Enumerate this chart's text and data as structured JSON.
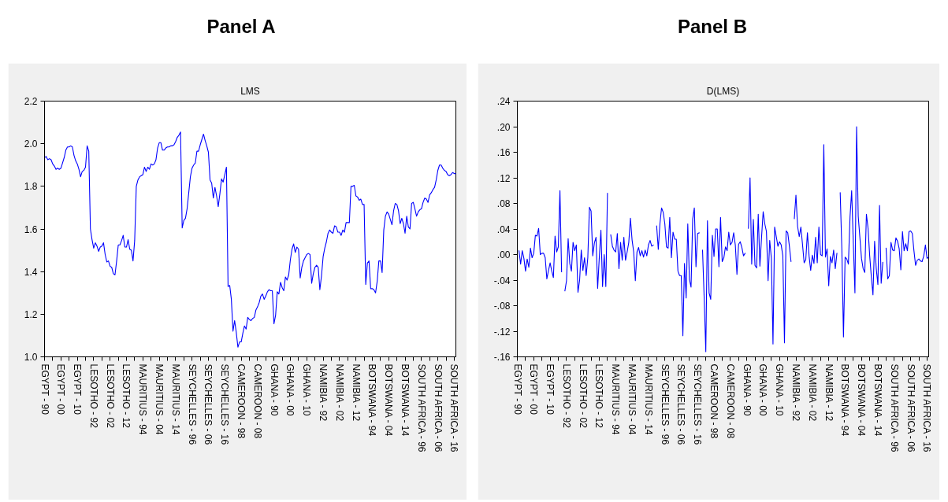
{
  "chart_data": [
    {
      "type": "line",
      "title": "Panel A",
      "subtitle": "LMS",
      "categories": [
        "EGYPT - 90",
        null,
        null,
        null,
        null,
        null,
        null,
        null,
        null,
        null,
        "EGYPT - 00",
        null,
        null,
        null,
        null,
        null,
        null,
        null,
        null,
        null,
        "EGYPT - 10",
        null,
        null,
        null,
        null,
        null,
        null,
        null,
        null,
        null,
        "LESOTHO - 92",
        null,
        null,
        null,
        null,
        null,
        null,
        null,
        null,
        null,
        "LESOTHO - 02",
        null,
        null,
        null,
        null,
        null,
        null,
        null,
        null,
        null,
        "LESOTHO - 12",
        null,
        null,
        null,
        null,
        null,
        null,
        null,
        null,
        null,
        "MAURITIUS - 94",
        null,
        null,
        null,
        null,
        null,
        null,
        null,
        null,
        null,
        "MAURITIUS - 04",
        null,
        null,
        null,
        null,
        null,
        null,
        null,
        null,
        null,
        "MAURITIUS - 14",
        null,
        null,
        null,
        null,
        null,
        null,
        null,
        null,
        null,
        "SEYCHELLES - 96",
        null,
        null,
        null,
        null,
        null,
        null,
        null,
        null,
        null,
        "SEYCHELLES - 06",
        null,
        null,
        null,
        null,
        null,
        null,
        null,
        null,
        null,
        "SEYCHELLES - 16",
        null,
        null,
        null,
        null,
        null,
        null,
        null,
        null,
        null,
        "CAMEROON - 98",
        null,
        null,
        null,
        null,
        null,
        null,
        null,
        null,
        null,
        "CAMEROON - 08",
        null,
        null,
        null,
        null,
        null,
        null,
        null,
        null,
        null,
        "GHANA - 90",
        null,
        null,
        null,
        null,
        null,
        null,
        null,
        null,
        null,
        "GHANA - 00",
        null,
        null,
        null,
        null,
        null,
        null,
        null,
        null,
        null,
        "GHANA - 10",
        null,
        null,
        null,
        null,
        null,
        null,
        null,
        null,
        null,
        "NAMIBIA - 92",
        null,
        null,
        null,
        null,
        null,
        null,
        null,
        null,
        null,
        "NAMIBIA - 02",
        null,
        null,
        null,
        null,
        null,
        null,
        null,
        null,
        null,
        "NAMIBIA - 12",
        null,
        null,
        null,
        null,
        null,
        null,
        null,
        null,
        null,
        "BOTSWANA - 94",
        null,
        null,
        null,
        null,
        null,
        null,
        null,
        null,
        null,
        "BOTSWANA - 04",
        null,
        null,
        null,
        null,
        null,
        null,
        null,
        null,
        null,
        "BOTSWANA - 14",
        null,
        null,
        null,
        null,
        null,
        null,
        null,
        null,
        null,
        "SOUTH AFRICA - 96",
        null,
        null,
        null,
        null,
        null,
        null,
        null,
        null,
        null,
        "SOUTH AFRICA - 06",
        null,
        null,
        null,
        null,
        null,
        null,
        null,
        null,
        null,
        "SOUTH AFRICA - 16",
        null
      ],
      "series": [
        {
          "color": "#0000ff",
          "values": [
            1.935,
            1.94,
            1.925,
            1.93,
            1.925,
            1.905,
            1.895,
            1.88,
            1.885,
            1.88,
            1.885,
            1.91,
            1.935,
            1.97,
            1.985,
            1.985,
            1.99,
            1.985,
            1.945,
            1.92,
            1.905,
            1.88,
            1.845,
            1.87,
            1.875,
            1.89,
            1.99,
            1.965,
            1.6,
            1.55,
            1.51,
            1.535,
            1.52,
            1.495,
            1.515,
            1.52,
            1.535,
            1.48,
            1.445,
            1.45,
            1.425,
            1.42,
            1.39,
            1.385,
            1.45,
            1.525,
            1.525,
            1.545,
            1.57,
            1.515,
            1.515,
            1.55,
            1.505,
            1.5,
            1.45,
            1.545,
            1.8,
            1.83,
            1.845,
            1.85,
            1.855,
            1.89,
            1.87,
            1.89,
            1.88,
            1.905,
            1.9,
            1.905,
            1.925,
            1.98,
            2.005,
            2.005,
            1.97,
            1.97,
            1.98,
            1.985,
            1.985,
            1.99,
            1.99,
            1.995,
            2.01,
            2.03,
            2.04,
            2.055,
            1.605,
            1.64,
            1.65,
            1.695,
            1.77,
            1.845,
            1.885,
            1.9,
            1.91,
            1.965,
            1.965,
            1.995,
            2.02,
            2.045,
            2.015,
            1.99,
            1.96,
            1.83,
            1.815,
            1.745,
            1.795,
            1.755,
            1.705,
            1.765,
            1.835,
            1.82,
            1.855,
            1.89,
            1.33,
            1.335,
            1.27,
            1.12,
            1.17,
            1.115,
            1.045,
            1.07,
            1.07,
            1.11,
            1.145,
            1.13,
            1.185,
            1.175,
            1.17,
            1.18,
            1.185,
            1.22,
            1.235,
            1.255,
            1.285,
            1.295,
            1.27,
            1.285,
            1.305,
            1.315,
            1.31,
            1.31,
            1.155,
            1.195,
            1.305,
            1.295,
            1.35,
            1.325,
            1.31,
            1.375,
            1.36,
            1.385,
            1.455,
            1.505,
            1.53,
            1.49,
            1.515,
            1.505,
            1.37,
            1.42,
            1.45,
            1.465,
            1.48,
            1.485,
            1.48,
            1.345,
            1.39,
            1.42,
            1.43,
            1.42,
            1.315,
            1.38,
            1.47,
            1.51,
            1.54,
            1.58,
            1.595,
            1.585,
            1.58,
            1.615,
            1.61,
            1.585,
            1.585,
            1.57,
            1.595,
            1.585,
            1.63,
            1.63,
            1.63,
            1.8,
            1.8,
            1.805,
            1.755,
            1.75,
            1.735,
            1.74,
            1.715,
            1.715,
            1.34,
            1.44,
            1.45,
            1.32,
            1.32,
            1.315,
            1.3,
            1.355,
            1.45,
            1.45,
            1.395,
            1.595,
            1.66,
            1.68,
            1.67,
            1.645,
            1.62,
            1.685,
            1.72,
            1.715,
            1.685,
            1.625,
            1.65,
            1.625,
            1.58,
            1.66,
            1.61,
            1.6,
            1.72,
            1.725,
            1.695,
            1.66,
            1.68,
            1.69,
            1.695,
            1.725,
            1.745,
            1.74,
            1.725,
            1.76,
            1.77,
            1.785,
            1.795,
            1.83,
            1.875,
            1.9,
            1.9,
            1.885,
            1.875,
            1.87,
            1.855,
            1.85,
            1.855,
            1.865,
            1.86,
            1.86
          ]
        }
      ],
      "ylim": [
        1.0,
        2.2
      ],
      "yticks": [
        {
          "value": 1,
          "label": "1.0"
        },
        1.2,
        1.4,
        1.6,
        1.8,
        {
          "value": 2,
          "label": "2.0"
        },
        2.2
      ]
    },
    {
      "type": "line",
      "title": "Panel B",
      "subtitle": "D(LMS)",
      "categories": [
        "EGYPT - 90",
        null,
        null,
        null,
        null,
        null,
        null,
        null,
        null,
        null,
        "EGYPT - 00",
        null,
        null,
        null,
        null,
        null,
        null,
        null,
        null,
        null,
        "EGYPT - 10",
        null,
        null,
        null,
        null,
        null,
        null,
        null,
        null,
        null,
        "LESOTHO - 92",
        null,
        null,
        null,
        null,
        null,
        null,
        null,
        null,
        null,
        "LESOTHO - 02",
        null,
        null,
        null,
        null,
        null,
        null,
        null,
        null,
        null,
        "LESOTHO - 12",
        null,
        null,
        null,
        null,
        null,
        null,
        null,
        null,
        null,
        "MAURITIUS - 94",
        null,
        null,
        null,
        null,
        null,
        null,
        null,
        null,
        null,
        "MAURITIUS - 04",
        null,
        null,
        null,
        null,
        null,
        null,
        null,
        null,
        null,
        "MAURITIUS - 14",
        null,
        null,
        null,
        null,
        null,
        null,
        null,
        null,
        null,
        "SEYCHELLES - 96",
        null,
        null,
        null,
        null,
        null,
        null,
        null,
        null,
        null,
        "SEYCHELLES - 06",
        null,
        null,
        null,
        null,
        null,
        null,
        null,
        null,
        null,
        "SEYCHELLES - 16",
        null,
        null,
        null,
        null,
        null,
        null,
        null,
        null,
        null,
        "CAMEROON - 98",
        null,
        null,
        null,
        null,
        null,
        null,
        null,
        null,
        null,
        "CAMEROON - 08",
        null,
        null,
        null,
        null,
        null,
        null,
        null,
        null,
        null,
        "GHANA - 90",
        null,
        null,
        null,
        null,
        null,
        null,
        null,
        null,
        null,
        "GHANA - 00",
        null,
        null,
        null,
        null,
        null,
        null,
        null,
        null,
        null,
        "GHANA - 10",
        null,
        null,
        null,
        null,
        null,
        null,
        null,
        null,
        null,
        "NAMIBIA - 92",
        null,
        null,
        null,
        null,
        null,
        null,
        null,
        null,
        null,
        "NAMIBIA - 02",
        null,
        null,
        null,
        null,
        null,
        null,
        null,
        null,
        null,
        "NAMIBIA - 12",
        null,
        null,
        null,
        null,
        null,
        null,
        null,
        null,
        null,
        "BOTSWANA - 94",
        null,
        null,
        null,
        null,
        null,
        null,
        null,
        null,
        null,
        "BOTSWANA - 04",
        null,
        null,
        null,
        null,
        null,
        null,
        null,
        null,
        null,
        "BOTSWANA - 14",
        null,
        null,
        null,
        null,
        null,
        null,
        null,
        null,
        null,
        "SOUTH AFRICA - 96",
        null,
        null,
        null,
        null,
        null,
        null,
        null,
        null,
        null,
        "SOUTH AFRICA - 06",
        null,
        null,
        null,
        null,
        null,
        null,
        null,
        null,
        null,
        "SOUTH AFRICA - 16",
        null
      ],
      "series": [
        {
          "color": "#0000ff",
          "values": [
            null,
            0.006,
            -0.015,
            0.006,
            -0.006,
            -0.026,
            -0.007,
            -0.02,
            0.01,
            -0.005,
            0.002,
            0.03,
            0.029,
            0.041,
            0.0,
            0.002,
            0.002,
            -0.005,
            -0.038,
            -0.025,
            -0.013,
            -0.026,
            -0.036,
            0.029,
            0.004,
            0.012,
            0.1,
            -0.027,
            null,
            -0.057,
            -0.041,
            0.025,
            -0.014,
            -0.026,
            0.019,
            0.006,
            0.015,
            -0.059,
            -0.04,
            0.007,
            -0.025,
            -0.005,
            -0.033,
            -0.005,
            0.074,
            0.068,
            -0.002,
            0.018,
            0.027,
            -0.053,
            -0.005,
            0.038,
            -0.05,
            0.0,
            -0.05,
            0.096,
            null,
            0.031,
            0.013,
            0.007,
            0.004,
            0.033,
            -0.022,
            0.019,
            -0.009,
            0.027,
            -0.009,
            0.004,
            0.019,
            0.057,
            0.023,
            0.004,
            -0.041,
            0.004,
            0.011,
            -0.002,
            0.006,
            -0.004,
            0.007,
            -0.002,
            0.015,
            0.022,
            0.013,
            0.015,
            null,
            0.045,
            0.008,
            0.048,
            0.073,
            0.066,
            0.048,
            0.012,
            0.01,
            0.058,
            -0.005,
            0.035,
            0.024,
            0.024,
            -0.026,
            -0.033,
            -0.033,
            -0.127,
            -0.014,
            -0.068,
            0.048,
            -0.039,
            -0.051,
            0.056,
            0.073,
            -0.019,
            0.033,
            0.034,
            null,
            0.007,
            -0.068,
            -0.152,
            0.053,
            -0.06,
            -0.07,
            0.03,
            -0.003,
            0.04,
            0.04,
            -0.019,
            0.058,
            -0.011,
            -0.005,
            0.012,
            0.006,
            0.035,
            0.015,
            0.019,
            0.034,
            0.015,
            -0.031,
            0.016,
            0.02,
            0.011,
            -0.002,
            0.002,
            null,
            0.041,
            0.12,
            -0.015,
            0.055,
            -0.017,
            -0.021,
            0.063,
            -0.018,
            0.026,
            0.067,
            0.048,
            0.036,
            -0.041,
            0.022,
            -0.006,
            -0.14,
            0.043,
            0.028,
            0.013,
            0.02,
            0.015,
            -0.002,
            -0.138,
            0.037,
            0.034,
            0.013,
            -0.011,
            null,
            0.056,
            0.093,
            0.044,
            0.028,
            0.043,
            0.016,
            -0.013,
            -0.008,
            0.034,
            -0.002,
            -0.025,
            -0.001,
            -0.014,
            0.027,
            -0.013,
            0.043,
            0.0,
            -0.002,
            0.172,
            -0.004,
            0.009,
            -0.049,
            -0.003,
            -0.013,
            0.007,
            -0.022,
            0.002,
            null,
            0.097,
            0.009,
            -0.129,
            -0.004,
            -0.007,
            -0.015,
            0.059,
            0.1,
            0.018,
            -0.06,
            0.2,
            0.06,
            0.027,
            -0.006,
            -0.022,
            -0.028,
            0.063,
            0.041,
            -0.002,
            -0.035,
            -0.063,
            0.021,
            -0.022,
            -0.047,
            0.077,
            -0.045,
            -0.012,
            null,
            0.01,
            -0.038,
            -0.033,
            0.019,
            0.007,
            0.006,
            0.026,
            0.021,
            0.009,
            -0.024,
            0.036,
            0.006,
            0.017,
            0.006,
            0.036,
            0.037,
            0.033,
            0.006,
            -0.017,
            -0.009,
            -0.007,
            -0.01,
            -0.011,
            -0.002,
            0.015,
            -0.006,
            -0.004
          ]
        }
      ],
      "ylim": [
        -0.16,
        0.24
      ],
      "yticks": [
        {
          "value": -0.16,
          "label": "-.16"
        },
        {
          "value": -0.12,
          "label": "-.12"
        },
        {
          "value": -0.08,
          "label": "-.08"
        },
        {
          "value": -0.04,
          "label": "-.04"
        },
        {
          "value": 0,
          "label": ".00"
        },
        {
          "value": 0.04,
          "label": ".04"
        },
        {
          "value": 0.08,
          "label": ".08"
        },
        {
          "value": 0.12,
          "label": ".12"
        },
        {
          "value": 0.16,
          "label": ".16"
        },
        {
          "value": 0.2,
          "label": ".20"
        },
        {
          "value": 0.24,
          "label": ".24"
        }
      ]
    }
  ]
}
